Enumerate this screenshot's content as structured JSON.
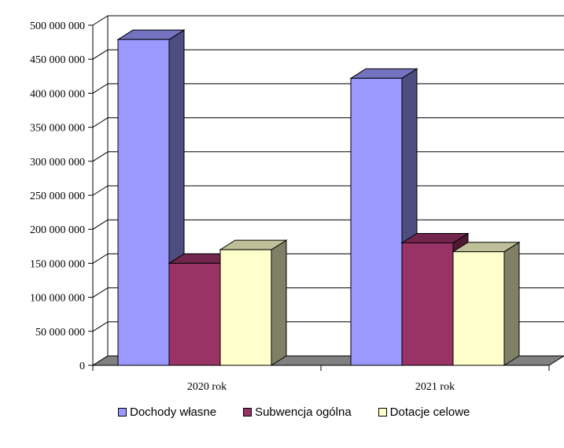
{
  "chart_data": {
    "type": "bar",
    "categories": [
      "2020 rok",
      "2021 rok"
    ],
    "series": [
      {
        "name": "Dochody własne",
        "values": [
          479000000,
          422000000
        ],
        "color": "#9999ff",
        "side_color": "#4d4d80",
        "top_color": "#7373bf"
      },
      {
        "name": "Subwencja ogólna",
        "values": [
          150000000,
          180000000
        ],
        "color": "#993366",
        "side_color": "#4d1a33",
        "top_color": "#73264d"
      },
      {
        "name": "Dotacje celowe",
        "values": [
          170000000,
          167000000
        ],
        "color": "#ffffcc",
        "side_color": "#808066",
        "top_color": "#bfbf99"
      }
    ],
    "yticks": [
      "0",
      "50 000 000",
      "100 000 000",
      "150 000 000",
      "200 000 000",
      "250 000 000",
      "300 000 000",
      "350 000 000",
      "400 000 000",
      "450 000 000",
      "500 000 000"
    ],
    "ylim": [
      0,
      500000000
    ],
    "grid": true,
    "legend_position": "bottom"
  }
}
